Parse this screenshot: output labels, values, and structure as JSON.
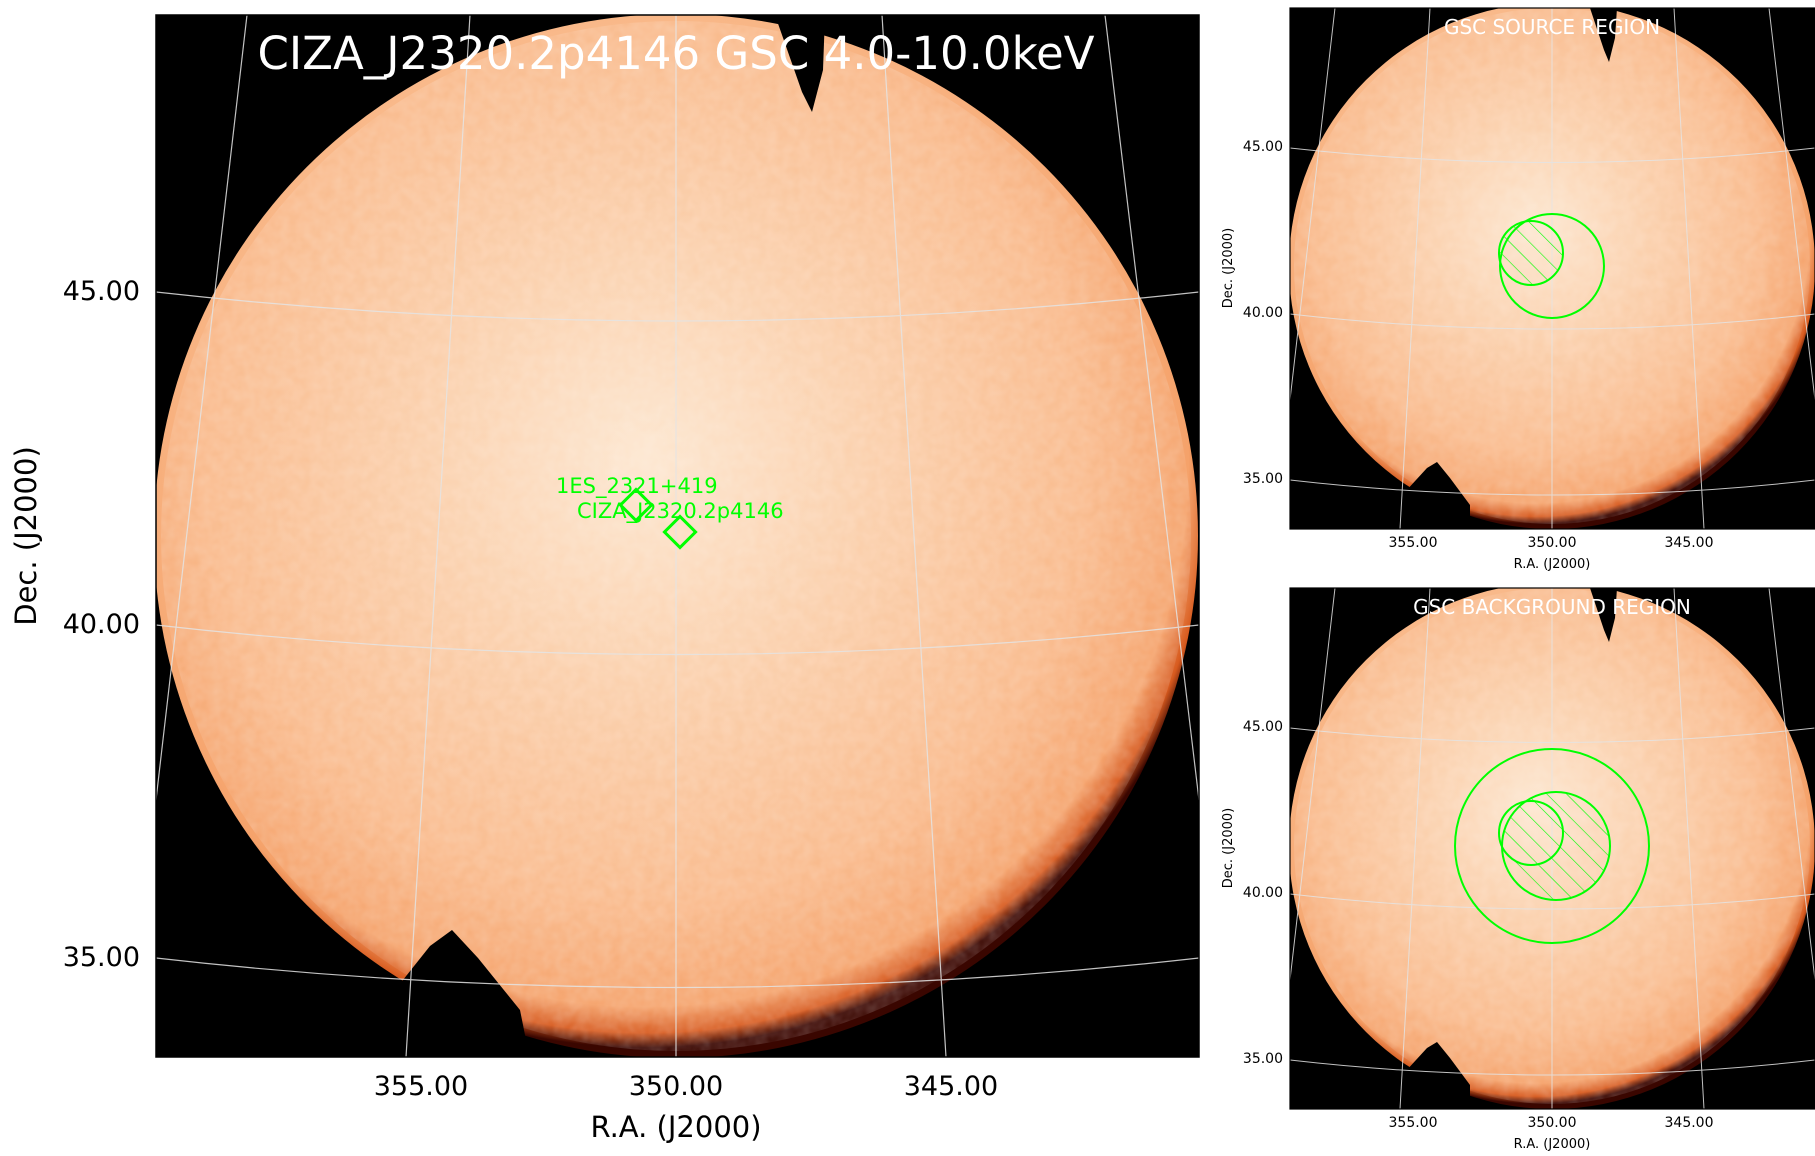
{
  "main_panel": {
    "title": "CIZA_J2320.2p4146 GSC 4.0-10.0keV",
    "xlabel": "R.A. (J2000)",
    "ylabel": "Dec. (J2000)",
    "x_ticks": [
      "355.00",
      "350.00",
      "345.00"
    ],
    "y_ticks": [
      "45.00",
      "40.00",
      "35.00"
    ],
    "sources": [
      {
        "name": "1ES_2321+419"
      },
      {
        "name": "CIZA_J2320.2p4146"
      }
    ]
  },
  "source_panel": {
    "title": "GSC SOURCE REGION",
    "xlabel": "R.A. (J2000)",
    "ylabel": "Dec. (J2000)",
    "x_ticks": [
      "355.00",
      "350.00",
      "345.00"
    ],
    "y_ticks": [
      "45.00",
      "40.00",
      "35.00"
    ]
  },
  "background_panel": {
    "title": "GSC BACKGROUND REGION",
    "xlabel": "R.A. (J2000)",
    "ylabel": "Dec. (J2000)",
    "x_ticks": [
      "355.00",
      "350.00",
      "345.00"
    ],
    "y_ticks": [
      "45.00",
      "40.00",
      "35.00"
    ]
  },
  "colors": {
    "image_core": "#fde6cf",
    "image_body": "#f9b27c",
    "image_edge": "#c8460f",
    "sky_background": "#000000",
    "grid": "#d8d8d8",
    "region": "#00ff00"
  }
}
